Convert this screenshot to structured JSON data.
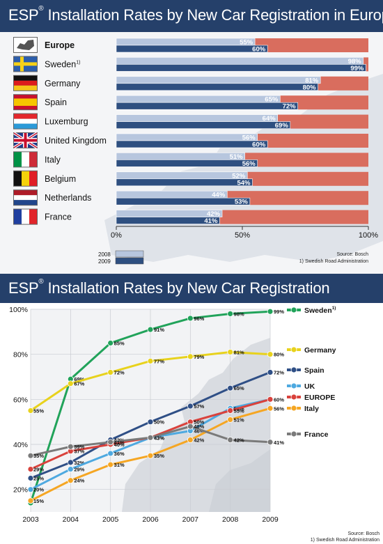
{
  "bar_chart": {
    "title": "ESP",
    "title_mark": "®",
    "title_rest": "Installation Rates by New Car Registration in Europe",
    "rows": [
      {
        "country": "Europe",
        "flag": "europe-map-icon",
        "bold": true,
        "v2008": 55,
        "v2009": 60,
        "l2008": "55%",
        "l2009": "60%"
      },
      {
        "country": "Sweden",
        "note": "1)",
        "flag": "sweden-flag-icon",
        "v2008": 98,
        "v2009": 99,
        "l2008": "98%",
        "l2009": "99%"
      },
      {
        "country": "Germany",
        "flag": "germany-flag-icon",
        "v2008": 81,
        "v2009": 80,
        "l2008": "81%",
        "l2009": "80%"
      },
      {
        "country": "Spain",
        "flag": "spain-flag-icon",
        "v2008": 65,
        "v2009": 72,
        "l2008": "65%",
        "l2009": "72%"
      },
      {
        "country": "Luxemburg",
        "flag": "luxemburg-flag-icon",
        "v2008": 64,
        "v2009": 69,
        "l2008": "64%",
        "l2009": "69%"
      },
      {
        "country": "United Kingdom",
        "flag": "uk-flag-icon",
        "v2008": 56,
        "v2009": 60,
        "l2008": "56%",
        "l2009": "60%"
      },
      {
        "country": "Italy",
        "flag": "italy-flag-icon",
        "v2008": 51,
        "v2009": 56,
        "l2008": "51%",
        "l2009": "56%"
      },
      {
        "country": "Belgium",
        "flag": "belgium-flag-icon",
        "v2008": 52,
        "v2009": 54,
        "l2008": "52%",
        "l2009": "54%"
      },
      {
        "country": "Netherlands",
        "flag": "netherlands-flag-icon",
        "v2008": 44,
        "v2009": 53,
        "l2008": "44%",
        "l2009": "53%"
      },
      {
        "country": "France",
        "flag": "france-flag-icon",
        "v2008": 42,
        "v2009": 41,
        "l2008": "42%",
        "l2009": "41%"
      }
    ],
    "xticks": [
      "0%",
      "50%",
      "100%"
    ],
    "legend": [
      {
        "label": "2008",
        "color": "#b7c6de"
      },
      {
        "label": "2009",
        "color": "#2e4f80"
      }
    ],
    "source": "Source: Bosch",
    "footnote": "1) Swedish Road Administration",
    "colors": {
      "bar2008": "#b7c6de",
      "bar2009": "#2e4f80",
      "remainder": "#d96d5e"
    }
  },
  "line_chart": {
    "title": "ESP",
    "title_mark": "®",
    "title_rest": "Installation Rates by New Car Registration",
    "years": [
      "2003",
      "2004",
      "2005",
      "2006",
      "2007",
      "2008",
      "2009"
    ],
    "yticks": [
      "100%",
      "80%",
      "60%",
      "40%",
      "20%"
    ],
    "series": [
      {
        "name": "Sweden",
        "note": "1)",
        "color": "#21a35a",
        "values": [
          14,
          69,
          85,
          91,
          96,
          98,
          99
        ],
        "labels": [
          "",
          "69%",
          "85%",
          "91%",
          "96%",
          "98%",
          "99%"
        ]
      },
      {
        "name": "Germany",
        "color": "#e8d21c",
        "values": [
          55,
          67,
          72,
          77,
          79,
          81,
          80
        ],
        "labels": [
          "55%",
          "67%",
          "72%",
          "77%",
          "79%",
          "81%",
          "80%"
        ]
      },
      {
        "name": "Spain",
        "color": "#2f4f86",
        "values": [
          25,
          32,
          42,
          50,
          57,
          65,
          72
        ],
        "labels": [
          "25%",
          "32%",
          "42%",
          "50%",
          "57%",
          "65%",
          "72%"
        ]
      },
      {
        "name": "UK",
        "color": "#4ea9e0",
        "values": [
          20,
          29,
          36,
          43,
          46,
          56,
          60
        ],
        "labels": [
          "20%",
          "29%",
          "36%",
          "43%",
          "46%",
          "56%",
          "60%"
        ]
      },
      {
        "name": "EUROPE",
        "color": "#d9423c",
        "values": [
          29,
          37,
          40,
          43,
          50,
          55,
          60
        ],
        "labels": [
          "29%",
          "37%",
          "40%",
          "",
          "50%",
          "55%",
          ""
        ]
      },
      {
        "name": "Italy",
        "color": "#f5a623",
        "values": [
          15,
          24,
          31,
          35,
          42,
          51,
          56
        ],
        "labels": [
          "15%",
          "24%",
          "31%",
          "35%",
          "42%",
          "51%",
          "56%"
        ]
      },
      {
        "name": "France",
        "color": "#7a7a7a",
        "values": [
          35,
          39,
          41,
          43,
          48,
          42,
          41
        ],
        "labels": [
          "35%",
          "39%",
          "41%",
          "43%",
          "48%",
          "42%",
          "41%"
        ]
      }
    ],
    "source": "Source: Bosch",
    "footnote": "1) Swedish Road Administration"
  },
  "chart_data": [
    {
      "type": "bar",
      "title": "ESP® Installation Rates by New Car Registration in Europe",
      "categories": [
        "Europe",
        "Sweden",
        "Germany",
        "Spain",
        "Luxemburg",
        "United Kingdom",
        "Italy",
        "Belgium",
        "Netherlands",
        "France"
      ],
      "series": [
        {
          "name": "2008",
          "values": [
            55,
            98,
            81,
            65,
            64,
            56,
            51,
            52,
            44,
            42
          ]
        },
        {
          "name": "2009",
          "values": [
            60,
            99,
            80,
            72,
            69,
            60,
            56,
            54,
            53,
            41
          ]
        }
      ],
      "xlim": [
        0,
        100
      ],
      "legend": "bottom-left"
    },
    {
      "type": "line",
      "title": "ESP® Installation Rates by New Car Registration",
      "x": [
        "2003",
        "2004",
        "2005",
        "2006",
        "2007",
        "2008",
        "2009"
      ],
      "series": [
        {
          "name": "Sweden",
          "values": [
            14,
            69,
            85,
            91,
            96,
            98,
            99
          ]
        },
        {
          "name": "Germany",
          "values": [
            55,
            67,
            72,
            77,
            79,
            81,
            80
          ]
        },
        {
          "name": "Spain",
          "values": [
            25,
            32,
            42,
            50,
            57,
            65,
            72
          ]
        },
        {
          "name": "UK",
          "values": [
            20,
            29,
            36,
            43,
            46,
            56,
            60
          ]
        },
        {
          "name": "EUROPE",
          "values": [
            29,
            37,
            40,
            43,
            50,
            55,
            60
          ]
        },
        {
          "name": "Italy",
          "values": [
            15,
            24,
            31,
            35,
            42,
            51,
            56
          ]
        },
        {
          "name": "France",
          "values": [
            35,
            39,
            41,
            43,
            48,
            42,
            41
          ]
        }
      ],
      "ylim": [
        10,
        100
      ],
      "grid": true,
      "legend": "right"
    }
  ]
}
